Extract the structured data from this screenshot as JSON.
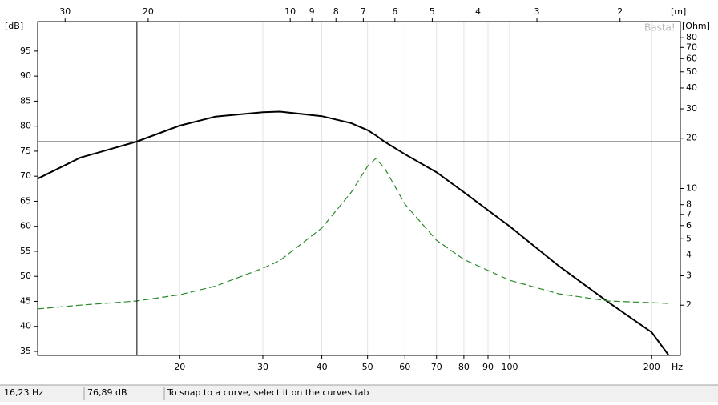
{
  "chart_data": {
    "type": "line",
    "watermark": "Basta!",
    "x_unit": "Hz",
    "y_unit": "[dB]",
    "y2_unit": "[Ohm]",
    "x2_unit": "[m]",
    "x": [
      10,
      12.3,
      16.2,
      20,
      23.8,
      30,
      32.6,
      40,
      46.2,
      50,
      52,
      54.3,
      60,
      70,
      80,
      100,
      127,
      162,
      200,
      217
    ],
    "series": [
      {
        "color": "#000000",
        "values": [
          69.5,
          73.7,
          76.9,
          80.1,
          81.9,
          82.8,
          82.9,
          82.0,
          80.6,
          79.2,
          78.2,
          76.9,
          74.4,
          70.8,
          66.8,
          60,
          52.1,
          44.8,
          38.8,
          34.3
        ]
      },
      {
        "color": "#2a8a2a",
        "axis": "y2",
        "dashed": true,
        "values": [
          1.9,
          2.0,
          2.12,
          2.31,
          2.6,
          3.33,
          3.7,
          5.8,
          9.5,
          13.6,
          15.1,
          13.3,
          8.06,
          4.9,
          3.76,
          2.82,
          2.34,
          2.12,
          2.07,
          2.05
        ]
      }
    ],
    "xscale": "log",
    "xlim": [
      10,
      230
    ],
    "xticks": [
      20,
      30,
      40,
      50,
      60,
      70,
      80,
      90,
      100,
      200
    ],
    "x2scale": "log",
    "x2lim": [
      34.3,
      1.49
    ],
    "x2ticks": [
      30,
      20,
      10,
      9,
      8,
      7,
      6,
      5,
      4,
      3,
      2
    ],
    "ylim": [
      34.2,
      100.9
    ],
    "yticks": [
      35,
      40,
      45,
      50,
      55,
      60,
      65,
      70,
      75,
      80,
      85,
      90,
      95
    ],
    "y2scale": "log",
    "y2lim": [
      1,
      100
    ],
    "y2ticks": [
      2,
      3,
      4,
      5,
      6,
      7,
      8,
      10,
      20,
      30,
      40,
      50,
      60,
      70,
      80
    ],
    "grid": true,
    "cursor": {
      "x": 16.23,
      "y": 76.89
    }
  },
  "status": {
    "freq": "16,23 Hz",
    "level": "76,89 dB",
    "hint": "To snap to a curve, select it on the curves tab"
  }
}
